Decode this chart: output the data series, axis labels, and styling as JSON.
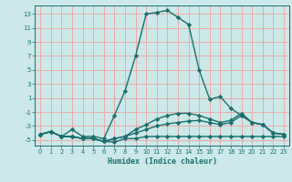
{
  "title": "",
  "xlabel": "Humidex (Indice chaleur)",
  "bg_color": "#cce8e8",
  "line_color": "#1a6e6e",
  "marker": "D",
  "markersize": 2.2,
  "linewidth": 1.0,
  "xlim": [
    -0.5,
    23.5
  ],
  "ylim": [
    -5.8,
    14.2
  ],
  "yticks": [
    -5,
    -3,
    -1,
    1,
    3,
    5,
    7,
    9,
    11,
    13
  ],
  "xticks": [
    0,
    1,
    2,
    3,
    4,
    5,
    6,
    7,
    8,
    9,
    10,
    11,
    12,
    13,
    14,
    15,
    16,
    17,
    18,
    19,
    20,
    21,
    22,
    23
  ],
  "grid_color": "#f0a0a0",
  "series": [
    {
      "x": [
        0,
        1,
        2,
        3,
        4,
        5,
        6,
        7,
        8,
        9,
        10,
        11,
        12,
        13,
        14,
        15,
        16,
        17,
        18,
        19,
        20,
        21,
        22,
        23
      ],
      "y": [
        -4.2,
        -3.8,
        -4.5,
        -4.5,
        -4.8,
        -4.8,
        -5.2,
        -5.3,
        -4.8,
        -4.8,
        -4.5,
        -4.5,
        -4.5,
        -4.5,
        -4.5,
        -4.5,
        -4.5,
        -4.5,
        -4.5,
        -4.5,
        -4.5,
        -4.5,
        -4.5,
        -4.5
      ]
    },
    {
      "x": [
        0,
        1,
        2,
        3,
        4,
        5,
        6,
        7,
        8,
        9,
        10,
        11,
        12,
        13,
        14,
        15,
        16,
        17,
        18,
        19,
        20,
        21,
        22,
        23
      ],
      "y": [
        -4.2,
        -3.8,
        -4.5,
        -4.5,
        -4.8,
        -4.8,
        -5.2,
        -4.8,
        -4.5,
        -4.0,
        -3.5,
        -3.0,
        -2.7,
        -2.5,
        -2.3,
        -2.2,
        -2.5,
        -2.8,
        -2.5,
        -1.5,
        -2.5,
        -2.8,
        -4.0,
        -4.2
      ]
    },
    {
      "x": [
        0,
        1,
        2,
        3,
        4,
        5,
        6,
        7,
        8,
        9,
        10,
        11,
        12,
        13,
        14,
        15,
        16,
        17,
        18,
        19,
        20,
        21,
        22,
        23
      ],
      "y": [
        -4.2,
        -3.8,
        -4.5,
        -4.5,
        -4.8,
        -4.8,
        -5.2,
        -4.8,
        -4.5,
        -3.5,
        -2.8,
        -2.0,
        -1.5,
        -1.2,
        -1.2,
        -1.5,
        -2.0,
        -2.5,
        -2.2,
        -1.2,
        -2.5,
        -2.8,
        -4.0,
        -4.2
      ]
    },
    {
      "x": [
        0,
        1,
        2,
        3,
        4,
        5,
        6,
        7,
        8,
        9,
        10,
        11,
        12,
        13,
        14,
        15,
        16,
        17,
        18,
        19,
        20,
        21,
        22,
        23
      ],
      "y": [
        -4.2,
        -3.8,
        -4.5,
        -3.5,
        -4.5,
        -4.5,
        -4.8,
        -1.5,
        2.0,
        7.0,
        13.0,
        13.2,
        13.5,
        12.5,
        11.5,
        5.0,
        0.8,
        1.2,
        -0.5,
        -1.5,
        -2.5,
        -2.8,
        -4.0,
        -4.2
      ]
    }
  ]
}
